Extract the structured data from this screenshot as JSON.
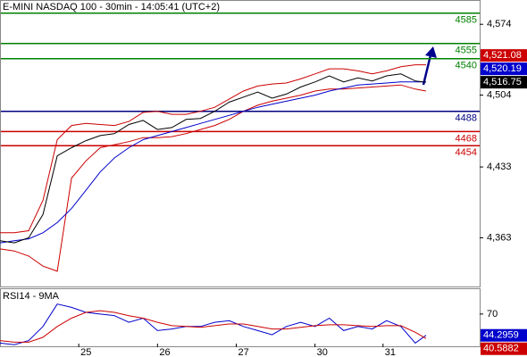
{
  "chart_data": [
    {
      "type": "line",
      "title": "E-MINI NASDAQ 100 - 30min - 14:05:41 (UTC+2)",
      "x": [
        0,
        4,
        8,
        12,
        16,
        20,
        24,
        28,
        32,
        36,
        40,
        44,
        48,
        52,
        56,
        60,
        64,
        68,
        72,
        76,
        80,
        84,
        88,
        92,
        96,
        100,
        104,
        108,
        112,
        116,
        119
      ],
      "xlim": [
        0,
        134
      ],
      "ylim": [
        4314,
        4598
      ],
      "yticks": [
        {
          "value": 4574,
          "label": "4,574"
        },
        {
          "value": 4504,
          "label": "4,504"
        },
        {
          "value": 4433,
          "label": "4,433"
        },
        {
          "value": 4363,
          "label": "4,363"
        }
      ],
      "series": [
        {
          "color": "#cc0000",
          "values": [
            4368,
            4368,
            4370,
            4400,
            4460,
            4474,
            4476,
            4475,
            4474,
            4478,
            4487,
            4488,
            4485,
            4485,
            4488,
            4492,
            4500,
            4508,
            4513,
            4515,
            4516,
            4520,
            4525,
            4530,
            4530,
            4528,
            4525,
            4528,
            4532,
            4534,
            4534
          ]
        },
        {
          "color": "#cc0000",
          "values": [
            4352,
            4350,
            4345,
            4335,
            4330,
            4422,
            4439,
            4452,
            4455,
            4458,
            4462,
            4462,
            4463,
            4466,
            4470,
            4474,
            4480,
            4488,
            4494,
            4498,
            4501,
            4504,
            4508,
            4510,
            4510,
            4511,
            4512,
            4513,
            4514,
            4510,
            4508
          ]
        },
        {
          "color": "#0000cc",
          "values": [
            4358,
            4360,
            4362,
            4368,
            4378,
            4392,
            4410,
            4428,
            4442,
            4452,
            4460,
            4464,
            4468,
            4472,
            4476,
            4480,
            4484,
            4488,
            4492,
            4495,
            4498,
            4501,
            4504,
            4508,
            4511,
            4514,
            4515,
            4516,
            4517,
            4517,
            4517
          ]
        },
        {
          "color": "#000000",
          "values": [
            4360,
            4358,
            4363,
            4386,
            4444,
            4452,
            4459,
            4464,
            4466,
            4475,
            4479,
            4470,
            4472,
            4480,
            4481,
            4488,
            4497,
            4502,
            4507,
            4501,
            4505,
            4512,
            4517,
            4523,
            4517,
            4521,
            4518,
            4523,
            4525,
            4518,
            4516.75
          ]
        }
      ],
      "levels": [
        {
          "value": 4585,
          "color": "#008000"
        },
        {
          "value": 4555,
          "color": "#008000"
        },
        {
          "value": 4540,
          "color": "#008000"
        },
        {
          "value": 4488,
          "color": "#000080"
        },
        {
          "value": 4468,
          "color": "#cc0000"
        },
        {
          "value": 4454,
          "color": "#cc0000"
        }
      ],
      "price_tags": [
        {
          "value": 4521.08,
          "label": "4,521.08",
          "color": "#cc0000"
        },
        {
          "value": 4520.19,
          "label": "4,520.19",
          "color": "#0000cc"
        },
        {
          "value": 4516.75,
          "label": "4,516.75",
          "color": "#000000"
        }
      ]
    },
    {
      "type": "line",
      "title": "RSI14 - 9MA",
      "x": [
        0,
        4,
        8,
        12,
        16,
        20,
        24,
        28,
        32,
        36,
        40,
        44,
        48,
        52,
        56,
        60,
        64,
        68,
        72,
        76,
        80,
        84,
        88,
        92,
        96,
        100,
        104,
        108,
        112,
        116,
        119
      ],
      "xlim": [
        0,
        134
      ],
      "xticks": [
        {
          "value": 22,
          "label": "25"
        },
        {
          "value": 44,
          "label": "26"
        },
        {
          "value": 66,
          "label": "27"
        },
        {
          "value": 88,
          "label": "30"
        },
        {
          "value": 107,
          "label": "31"
        }
      ],
      "ylim": [
        30,
        100
      ],
      "yticks": [
        70
      ],
      "series": [
        {
          "color": "#0000cc",
          "values": [
            35,
            33,
            38,
            55,
            82,
            78,
            72,
            70,
            68,
            60,
            65,
            50,
            52,
            55,
            55,
            60,
            62,
            55,
            50,
            45,
            55,
            60,
            55,
            65,
            50,
            55,
            52,
            62,
            55,
            35,
            44.2959
          ]
        },
        {
          "color": "#cc0000",
          "values": [
            38,
            36,
            36,
            42,
            55,
            65,
            72,
            74,
            72,
            68,
            65,
            60,
            56,
            55,
            54,
            56,
            58,
            58,
            55,
            52,
            52,
            54,
            56,
            57,
            57,
            56,
            55,
            56,
            56,
            48,
            40.5882
          ]
        }
      ],
      "price_tags": [
        {
          "value": 44.2959,
          "label": "44.2959",
          "color": "#0000cc"
        },
        {
          "value": 40.5882,
          "label": "40.5882",
          "color": "#cc0000"
        }
      ]
    }
  ]
}
